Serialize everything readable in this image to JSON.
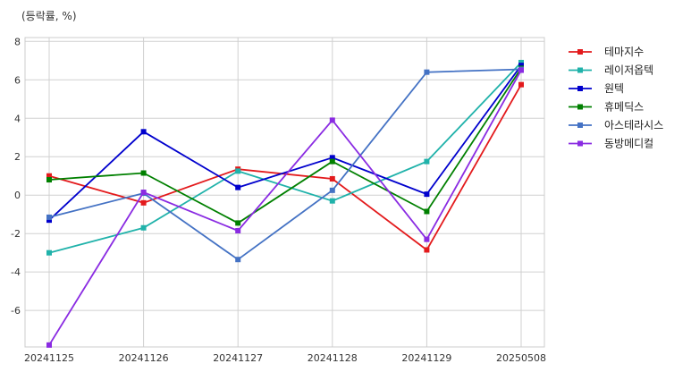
{
  "chart_data": {
    "type": "line",
    "ylabel": "(등락률, %)",
    "x": [
      "20241125",
      "20241126",
      "20241127",
      "20241128",
      "20241129",
      "20250508"
    ],
    "ylim": [
      -7.9,
      8.2
    ],
    "yticks": [
      -6,
      -4,
      -2,
      0,
      2,
      4,
      6,
      8
    ],
    "grid": true,
    "legend": "outside-right",
    "series": [
      {
        "name": "테마지수",
        "color": "#e31a1c",
        "values": [
          1.0,
          -0.4,
          1.35,
          0.85,
          -2.85,
          5.75
        ]
      },
      {
        "name": "레이저옵텍",
        "color": "#20b2aa",
        "values": [
          -3.0,
          -1.7,
          1.25,
          -0.3,
          1.75,
          6.9
        ]
      },
      {
        "name": "원텍",
        "color": "#0000cd",
        "values": [
          -1.3,
          3.3,
          0.4,
          1.95,
          0.05,
          6.75
        ]
      },
      {
        "name": "휴메딕스",
        "color": "#008000",
        "values": [
          0.8,
          1.15,
          -1.45,
          1.75,
          -0.85,
          6.6
        ]
      },
      {
        "name": "아스테라시스",
        "color": "#4472c4",
        "values": [
          -1.15,
          0.1,
          -3.35,
          0.25,
          6.4,
          6.55
        ]
      },
      {
        "name": "동방메디컬",
        "color": "#8a2be2",
        "values": [
          -7.8,
          0.15,
          -1.85,
          3.9,
          -2.3,
          6.5
        ]
      }
    ]
  }
}
